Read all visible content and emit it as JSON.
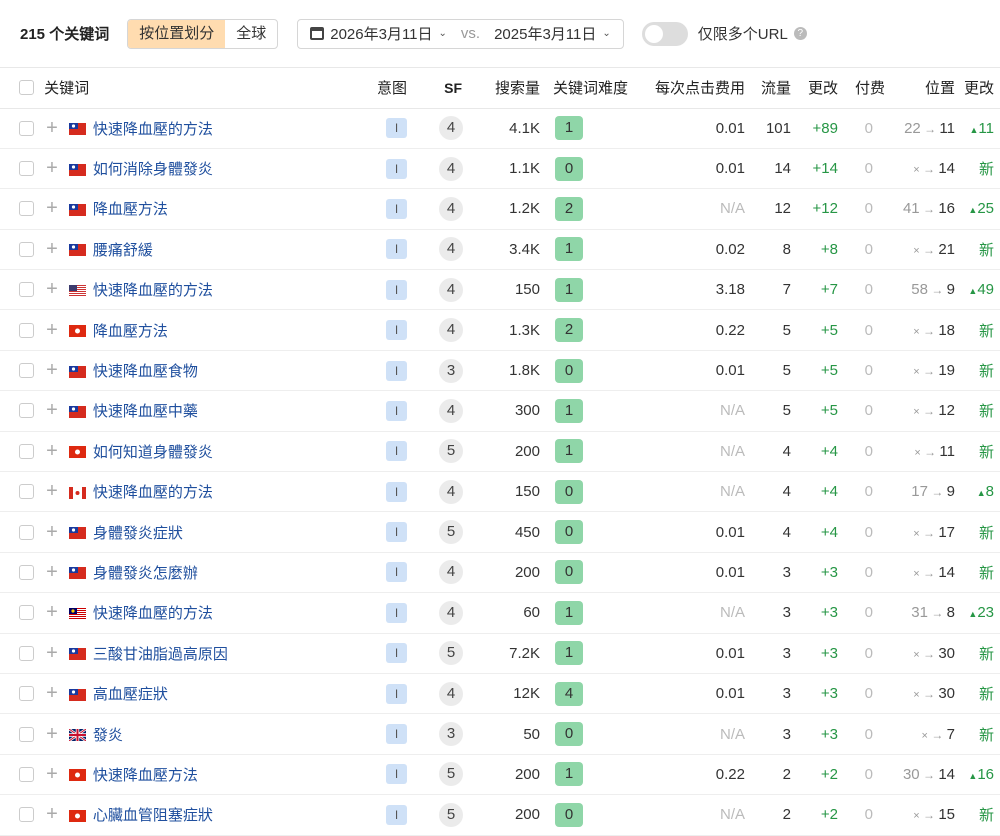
{
  "header": {
    "count": "215 个关键词",
    "seg": [
      "按位置划分",
      "全球"
    ],
    "date1": "2026年3月11日",
    "vs": "vs.",
    "date2": "2025年3月11日",
    "toggle_label": "仅限多个URL",
    "toggle_on": false,
    "help": "?"
  },
  "columns": [
    "关键词",
    "意图",
    "SF",
    "搜索量",
    "关键词难度",
    "每次点击费用",
    "流量",
    "更改",
    "付费",
    "位置",
    "更改"
  ],
  "colors": {
    "kd_easy": "#8fd6a8",
    "positive": "#269645",
    "link": "#1f4f9e",
    "segment_active": "#ffdcb0"
  },
  "rows": [
    {
      "flag": "TW",
      "kw": "快速降血壓的方法",
      "intent": "I",
      "sf": "4",
      "vol": "4.1K",
      "kd": "1",
      "cpc": "0.01",
      "traffic": "101",
      "chg": "+89",
      "paid": "0",
      "from": "22",
      "to": "11",
      "pchg": "11",
      "new": false
    },
    {
      "flag": "TW",
      "kw": "如何消除身體發炎",
      "intent": "I",
      "sf": "4",
      "vol": "1.1K",
      "kd": "0",
      "cpc": "0.01",
      "traffic": "14",
      "chg": "+14",
      "paid": "0",
      "from": "×",
      "to": "14",
      "pchg": "新",
      "new": true
    },
    {
      "flag": "TW",
      "kw": "降血壓方法",
      "intent": "I",
      "sf": "4",
      "vol": "1.2K",
      "kd": "2",
      "cpc": "N/A",
      "traffic": "12",
      "chg": "+12",
      "paid": "0",
      "from": "41",
      "to": "16",
      "pchg": "25",
      "new": false
    },
    {
      "flag": "TW",
      "kw": "腰痛舒緩",
      "intent": "I",
      "sf": "4",
      "vol": "3.4K",
      "kd": "1",
      "cpc": "0.02",
      "traffic": "8",
      "chg": "+8",
      "paid": "0",
      "from": "×",
      "to": "21",
      "pchg": "新",
      "new": true
    },
    {
      "flag": "US",
      "kw": "快速降血壓的方法",
      "intent": "I",
      "sf": "4",
      "vol": "150",
      "kd": "1",
      "cpc": "3.18",
      "traffic": "7",
      "chg": "+7",
      "paid": "0",
      "from": "58",
      "to": "9",
      "pchg": "49",
      "new": false
    },
    {
      "flag": "HK",
      "kw": "降血壓方法",
      "intent": "I",
      "sf": "4",
      "vol": "1.3K",
      "kd": "2",
      "cpc": "0.22",
      "traffic": "5",
      "chg": "+5",
      "paid": "0",
      "from": "×",
      "to": "18",
      "pchg": "新",
      "new": true
    },
    {
      "flag": "TW",
      "kw": "快速降血壓食物",
      "intent": "I",
      "sf": "3",
      "vol": "1.8K",
      "kd": "0",
      "cpc": "0.01",
      "traffic": "5",
      "chg": "+5",
      "paid": "0",
      "from": "×",
      "to": "19",
      "pchg": "新",
      "new": true
    },
    {
      "flag": "TW",
      "kw": "快速降血壓中藥",
      "intent": "I",
      "sf": "4",
      "vol": "300",
      "kd": "1",
      "cpc": "N/A",
      "traffic": "5",
      "chg": "+5",
      "paid": "0",
      "from": "×",
      "to": "12",
      "pchg": "新",
      "new": true
    },
    {
      "flag": "HK",
      "kw": "如何知道身體發炎",
      "intent": "I",
      "sf": "5",
      "vol": "200",
      "kd": "1",
      "cpc": "N/A",
      "traffic": "4",
      "chg": "+4",
      "paid": "0",
      "from": "×",
      "to": "11",
      "pchg": "新",
      "new": true
    },
    {
      "flag": "CA",
      "kw": "快速降血壓的方法",
      "intent": "I",
      "sf": "4",
      "vol": "150",
      "kd": "0",
      "cpc": "N/A",
      "traffic": "4",
      "chg": "+4",
      "paid": "0",
      "from": "17",
      "to": "9",
      "pchg": "8",
      "new": false
    },
    {
      "flag": "TW",
      "kw": "身體發炎症狀",
      "intent": "I",
      "sf": "5",
      "vol": "450",
      "kd": "0",
      "cpc": "0.01",
      "traffic": "4",
      "chg": "+4",
      "paid": "0",
      "from": "×",
      "to": "17",
      "pchg": "新",
      "new": true
    },
    {
      "flag": "TW",
      "kw": "身體發炎怎麼辦",
      "intent": "I",
      "sf": "4",
      "vol": "200",
      "kd": "0",
      "cpc": "0.01",
      "traffic": "3",
      "chg": "+3",
      "paid": "0",
      "from": "×",
      "to": "14",
      "pchg": "新",
      "new": true
    },
    {
      "flag": "MY",
      "kw": "快速降血壓的方法",
      "intent": "I",
      "sf": "4",
      "vol": "60",
      "kd": "1",
      "cpc": "N/A",
      "traffic": "3",
      "chg": "+3",
      "paid": "0",
      "from": "31",
      "to": "8",
      "pchg": "23",
      "new": false
    },
    {
      "flag": "TW",
      "kw": "三酸甘油脂過高原因",
      "intent": "I",
      "sf": "5",
      "vol": "7.2K",
      "kd": "1",
      "cpc": "0.01",
      "traffic": "3",
      "chg": "+3",
      "paid": "0",
      "from": "×",
      "to": "30",
      "pchg": "新",
      "new": true
    },
    {
      "flag": "TW",
      "kw": "高血壓症狀",
      "intent": "I",
      "sf": "4",
      "vol": "12K",
      "kd": "4",
      "cpc": "0.01",
      "traffic": "3",
      "chg": "+3",
      "paid": "0",
      "from": "×",
      "to": "30",
      "pchg": "新",
      "new": true
    },
    {
      "flag": "GB",
      "kw": "發炎",
      "intent": "I",
      "sf": "3",
      "vol": "50",
      "kd": "0",
      "cpc": "N/A",
      "traffic": "3",
      "chg": "+3",
      "paid": "0",
      "from": "×",
      "to": "7",
      "pchg": "新",
      "new": true
    },
    {
      "flag": "HK",
      "kw": "快速降血壓方法",
      "intent": "I",
      "sf": "5",
      "vol": "200",
      "kd": "1",
      "cpc": "0.22",
      "traffic": "2",
      "chg": "+2",
      "paid": "0",
      "from": "30",
      "to": "14",
      "pchg": "16",
      "new": false
    },
    {
      "flag": "HK",
      "kw": "心臟血管阻塞症狀",
      "intent": "I",
      "sf": "5",
      "vol": "200",
      "kd": "0",
      "cpc": "N/A",
      "traffic": "2",
      "chg": "+2",
      "paid": "0",
      "from": "×",
      "to": "15",
      "pchg": "新",
      "new": true
    }
  ]
}
